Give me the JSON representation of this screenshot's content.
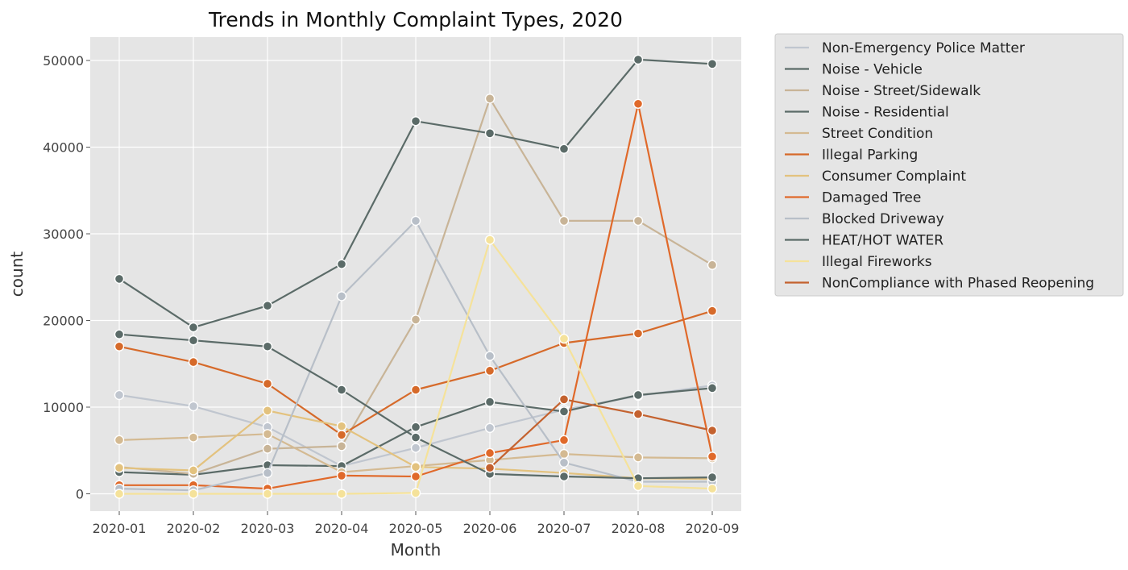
{
  "chart_data": {
    "type": "line",
    "title": "Trends in Monthly Complaint Types, 2020",
    "xlabel": "Month",
    "ylabel": "count",
    "categories": [
      "2020-01",
      "2020-02",
      "2020-03",
      "2020-04",
      "2020-05",
      "2020-06",
      "2020-07",
      "2020-08",
      "2020-09"
    ],
    "yticks": [
      0,
      10000,
      20000,
      30000,
      40000,
      50000
    ],
    "ylim": [
      -2000,
      52700
    ],
    "grid": true,
    "legend_position": "outside top-right",
    "series": [
      {
        "name": "Non-Emergency Police Matter",
        "color": "#c0c6cf",
        "values": [
          11400,
          10100,
          7700,
          3200,
          5300,
          7600,
          9700,
          11300,
          12500
        ]
      },
      {
        "name": "Noise - Vehicle",
        "color": "#5b6b68",
        "values": [
          2500,
          2200,
          3300,
          3200,
          7700,
          10600,
          9500,
          11400,
          12200
        ]
      },
      {
        "name": "Noise - Street/Sidewalk",
        "color": "#c8b497",
        "values": [
          3100,
          2300,
          5200,
          5500,
          20100,
          45600,
          31500,
          31500,
          26400
        ]
      },
      {
        "name": "Noise - Residential",
        "color": "#5b6b68",
        "values": [
          24800,
          19200,
          21700,
          26500,
          43000,
          41600,
          39800,
          50100,
          49600
        ]
      },
      {
        "name": "Street Condition",
        "color": "#d4ba92",
        "values": [
          6200,
          6500,
          6900,
          2500,
          3200,
          3900,
          4600,
          4200,
          4100
        ]
      },
      {
        "name": "Illegal Parking",
        "color": "#d66a2a",
        "values": [
          17000,
          15200,
          12700,
          6800,
          12000,
          14200,
          17400,
          18500,
          21100
        ]
      },
      {
        "name": "Consumer Complaint",
        "color": "#e3c27e",
        "values": [
          3000,
          2700,
          9600,
          7800,
          3100,
          2900,
          2400,
          1800,
          1700
        ]
      },
      {
        "name": "Damaged Tree",
        "color": "#e0692a",
        "values": [
          1000,
          1000,
          600,
          2100,
          2000,
          4700,
          6200,
          45000,
          4300
        ]
      },
      {
        "name": "Blocked Driveway",
        "color": "#b8bfc8",
        "values": [
          600,
          400,
          2400,
          22800,
          31500,
          15900,
          3600,
          1400,
          1400
        ]
      },
      {
        "name": "HEAT/HOT WATER",
        "color": "#5b6b68",
        "values": [
          18400,
          17700,
          17000,
          12000,
          6500,
          2300,
          2000,
          1800,
          1900
        ]
      },
      {
        "name": "Illegal Fireworks",
        "color": "#f5e29a",
        "values": [
          0,
          0,
          0,
          0,
          100,
          29300,
          17900,
          900,
          600
        ]
      },
      {
        "name": "NonCompliance with Phased Reopening",
        "color": "#c4622f",
        "values": [
          null,
          null,
          null,
          null,
          null,
          3000,
          10900,
          9200,
          7300
        ]
      }
    ]
  }
}
